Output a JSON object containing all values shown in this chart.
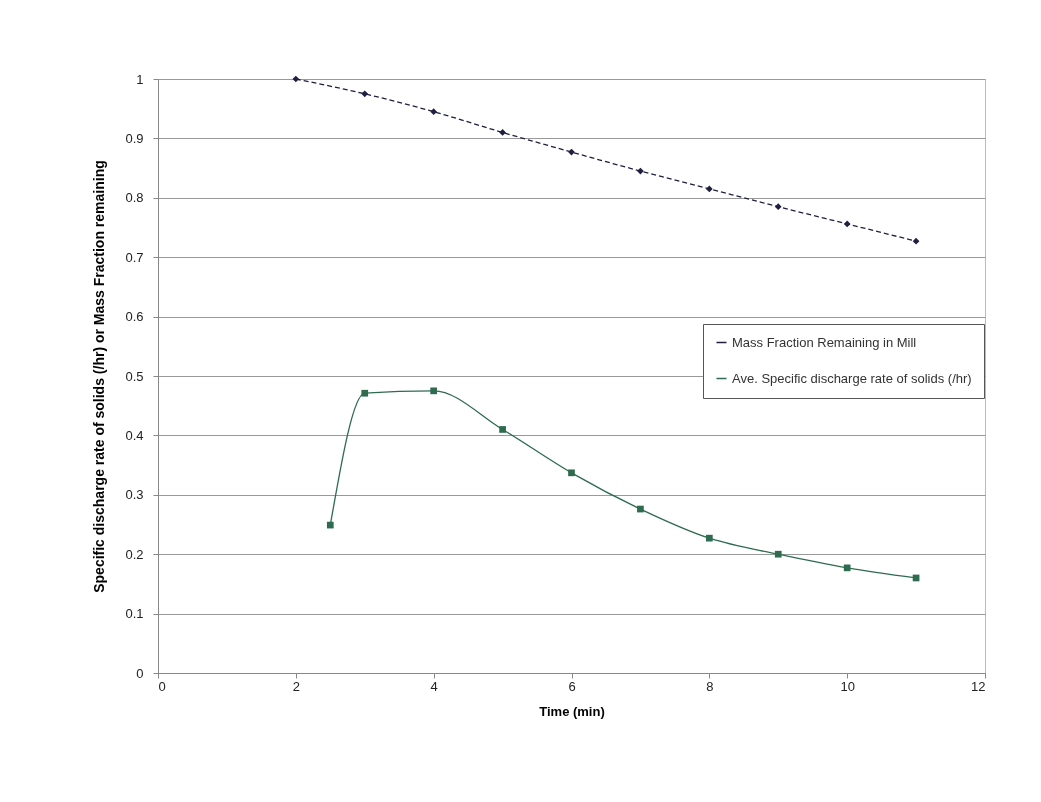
{
  "chart_data": {
    "type": "line",
    "xlabel": "Time (min)",
    "ylabel": "Specific discharge rate of solids (/hr) or Mass Fraction remaining",
    "xlim": [
      0,
      12
    ],
    "xticks": [
      0,
      2,
      4,
      6,
      8,
      10,
      12
    ],
    "ylim": [
      0,
      1
    ],
    "yticks": [
      0,
      0.1,
      0.2,
      0.3,
      0.4,
      0.5,
      0.6,
      0.7,
      0.8,
      0.9,
      1
    ],
    "grid": "y",
    "legend": "right",
    "series": [
      {
        "name": "Mass Fraction Remaining in Mill",
        "color": "#1f1f3f",
        "marker": "diamond",
        "line_style": "dashed",
        "x": [
          2,
          3,
          4,
          5,
          6,
          7,
          8,
          9,
          10,
          11
        ],
        "values": [
          1.0,
          0.975,
          0.945,
          0.91,
          0.877,
          0.845,
          0.815,
          0.785,
          0.756,
          0.727
        ]
      },
      {
        "name": "Ave. Specific discharge rate of solids (/hr)",
        "color": "#2e6b4f",
        "marker": "square",
        "line_style": "solid",
        "x": [
          2.5,
          3,
          4,
          5,
          6,
          7,
          8,
          9,
          10,
          11
        ],
        "values": [
          0.249,
          0.471,
          0.475,
          0.41,
          0.337,
          0.276,
          0.227,
          0.2,
          0.177,
          0.16
        ]
      }
    ]
  }
}
